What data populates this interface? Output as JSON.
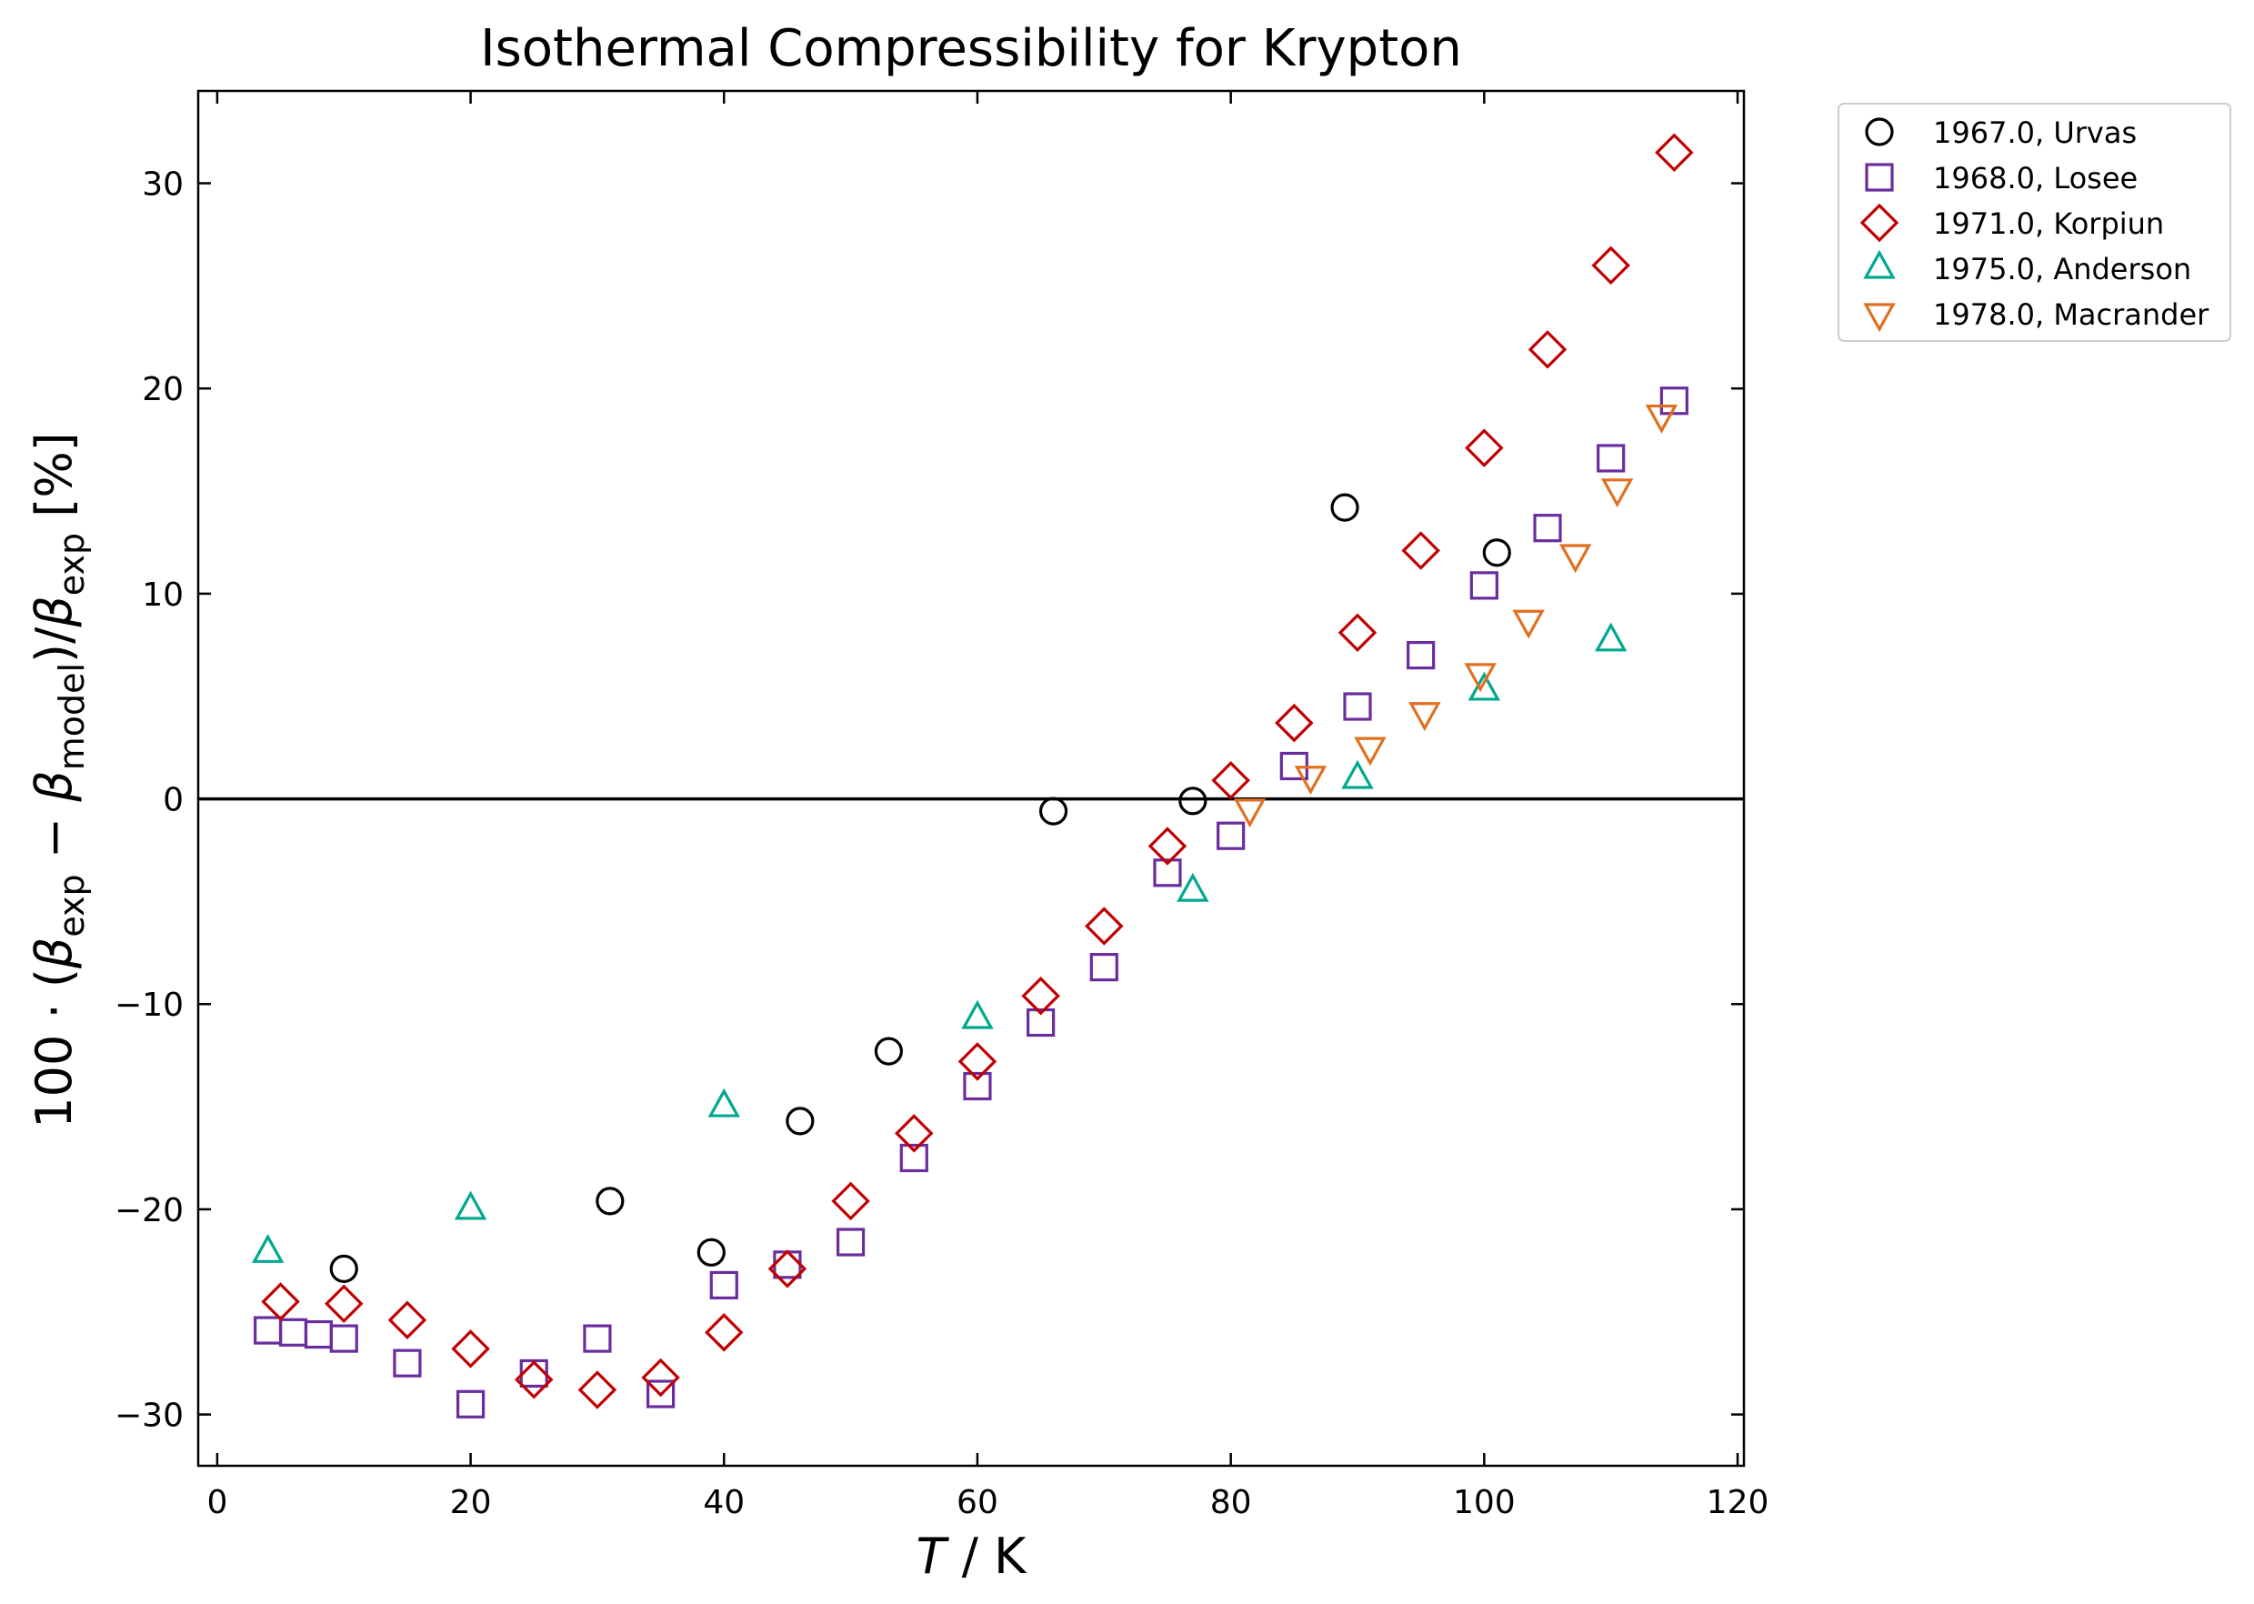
{
  "chart_data": {
    "type": "scatter",
    "title": "Isothermal Compressibility for Krypton",
    "xlabel_var": "T",
    "xlabel_unit": " / K",
    "ylabel": "100 · (β_exp − β_model)/β_exp [%]",
    "xlim": [
      -1.5,
      120.5
    ],
    "ylim": [
      -32.5,
      34.5
    ],
    "xticks": [
      0,
      20,
      40,
      60,
      80,
      100,
      120
    ],
    "yticks": [
      -30,
      -20,
      -10,
      0,
      10,
      20,
      30
    ],
    "grid": false,
    "zero_line": true,
    "legend_position": "outside-top-right",
    "series": [
      {
        "name": "1967.0, Urvas",
        "marker": "circle",
        "color": "#000000",
        "points": [
          [
            10,
            -22.9
          ],
          [
            31,
            -19.6
          ],
          [
            39,
            -22.1
          ],
          [
            46,
            -15.7
          ],
          [
            53,
            -12.3
          ],
          [
            66,
            -0.6
          ],
          [
            77,
            -0.1
          ],
          [
            89,
            14.2
          ],
          [
            101,
            12.0
          ]
        ]
      },
      {
        "name": "1968.0, Losee",
        "marker": "square",
        "color": "#6a2c9e",
        "points": [
          [
            4,
            -25.9
          ],
          [
            6,
            -26.0
          ],
          [
            8,
            -26.1
          ],
          [
            10,
            -26.3
          ],
          [
            15,
            -27.5
          ],
          [
            20,
            -29.5
          ],
          [
            25,
            -28.0
          ],
          [
            30,
            -26.3
          ],
          [
            35,
            -29.0
          ],
          [
            40,
            -23.7
          ],
          [
            45,
            -22.7
          ],
          [
            50,
            -21.6
          ],
          [
            55,
            -17.5
          ],
          [
            60,
            -14.0
          ],
          [
            65,
            -10.9
          ],
          [
            70,
            -8.2
          ],
          [
            75,
            -3.6
          ],
          [
            80,
            -1.8
          ],
          [
            85,
            1.6
          ],
          [
            90,
            4.5
          ],
          [
            95,
            7.0
          ],
          [
            100,
            10.4
          ],
          [
            105,
            13.2
          ],
          [
            110,
            16.6
          ],
          [
            115,
            19.4
          ]
        ]
      },
      {
        "name": "1971.0, Korpiun",
        "marker": "diamond",
        "color": "#c00000",
        "points": [
          [
            5,
            -24.5
          ],
          [
            10,
            -24.6
          ],
          [
            15,
            -25.4
          ],
          [
            20,
            -26.8
          ],
          [
            25,
            -28.3
          ],
          [
            30,
            -28.8
          ],
          [
            35,
            -28.2
          ],
          [
            40,
            -26.0
          ],
          [
            45,
            -22.9
          ],
          [
            50,
            -19.6
          ],
          [
            55,
            -16.3
          ],
          [
            60,
            -12.8
          ],
          [
            65,
            -9.6
          ],
          [
            70,
            -6.2
          ],
          [
            75,
            -2.3
          ],
          [
            80,
            0.9
          ],
          [
            85,
            3.7
          ],
          [
            90,
            8.1
          ],
          [
            95,
            12.1
          ],
          [
            100,
            17.1
          ],
          [
            105,
            21.9
          ],
          [
            110,
            26.0
          ],
          [
            115,
            31.5
          ]
        ]
      },
      {
        "name": "1975.0, Anderson",
        "marker": "triangle-up",
        "color": "#00a88f",
        "points": [
          [
            4,
            -22.1
          ],
          [
            20,
            -20.0
          ],
          [
            40,
            -15.0
          ],
          [
            60,
            -10.7
          ],
          [
            77,
            -4.5
          ],
          [
            90,
            1.0
          ],
          [
            100,
            5.3
          ],
          [
            110,
            7.7
          ]
        ]
      },
      {
        "name": "1978.0, Macrander",
        "marker": "triangle-down",
        "color": "#e07020",
        "points": [
          [
            81.5,
            -0.5
          ],
          [
            86.3,
            1.1
          ],
          [
            91,
            2.5
          ],
          [
            95.3,
            4.2
          ],
          [
            99.7,
            6.1
          ],
          [
            103.5,
            8.7
          ],
          [
            107.2,
            11.9
          ],
          [
            110.5,
            15.1
          ],
          [
            114,
            18.7
          ]
        ]
      }
    ]
  }
}
